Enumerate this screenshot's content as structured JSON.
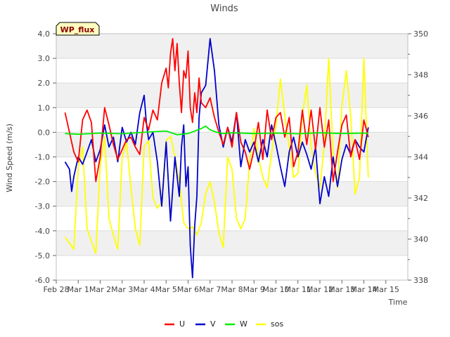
{
  "chart_data": {
    "type": "line",
    "title": "Winds",
    "xlabel": "Time",
    "ylabel": "Wind Speed (m/s)",
    "badge": "WP_flux",
    "colors": {
      "U": "#ff0000",
      "V": "#0000cc",
      "W": "#00ee00",
      "sos": "#ffff00",
      "badge_bg": "#ffffc0",
      "badge_text": "#8b0000",
      "band": "#f0f0f0"
    },
    "grid": true,
    "legend_position": "bottom-center",
    "xlim": [
      0,
      16
    ],
    "x_ticks": [
      0,
      1,
      2,
      3,
      4,
      5,
      6,
      7,
      8,
      9,
      10,
      11,
      12,
      13,
      14,
      15
    ],
    "x_tick_labels": [
      "Feb 28",
      "Mar 1",
      "Mar 2",
      "Mar 3",
      "Mar 4",
      "Mar 5",
      "Mar 6",
      "Mar 7",
      "Mar 8",
      "Mar 9",
      "Mar 10",
      "Mar 11",
      "Mar 12",
      "Mar 13",
      "Mar 14",
      "Mar 15"
    ],
    "ylim": [
      -6.0,
      4.0
    ],
    "y_ticks": [
      -6,
      -5,
      -4,
      -3,
      -2,
      -1,
      0,
      1,
      2,
      3,
      4
    ],
    "y_tick_labels": [
      "-6.0",
      "-5.0",
      "-4.0",
      "-3.0",
      "-2.0",
      "-1.0",
      "0.0",
      "1.0",
      "2.0",
      "3.0",
      "4.0"
    ],
    "y2lim": [
      338,
      350
    ],
    "y2_ticks": [
      338,
      340,
      342,
      344,
      346,
      348,
      350
    ],
    "y2_tick_labels": [
      "338",
      "340",
      "342",
      "344",
      "346",
      "348",
      "350"
    ],
    "series": [
      {
        "name": "U",
        "axis": "left",
        "x": [
          0.4,
          0.6,
          0.8,
          1.0,
          1.2,
          1.4,
          1.6,
          1.8,
          2.0,
          2.2,
          2.4,
          2.6,
          2.8,
          3.0,
          3.2,
          3.4,
          3.6,
          3.8,
          4.0,
          4.2,
          4.4,
          4.6,
          4.8,
          5.0,
          5.1,
          5.2,
          5.3,
          5.4,
          5.5,
          5.6,
          5.7,
          5.8,
          5.9,
          6.0,
          6.1,
          6.2,
          6.3,
          6.4,
          6.5,
          6.6,
          6.8,
          7.0,
          7.2,
          7.4,
          7.6,
          7.8,
          8.0,
          8.2,
          8.4,
          8.6,
          8.8,
          9.0,
          9.2,
          9.4,
          9.6,
          9.8,
          10.0,
          10.2,
          10.4,
          10.6,
          10.8,
          11.0,
          11.2,
          11.4,
          11.6,
          11.8,
          12.0,
          12.2,
          12.4,
          12.6,
          12.8,
          13.0,
          13.2,
          13.4,
          13.6,
          13.8,
          14.0,
          14.2
        ],
        "y": [
          0.8,
          0.0,
          -0.8,
          -1.2,
          0.5,
          0.9,
          0.4,
          -2.0,
          -1.0,
          1.0,
          0.3,
          -0.5,
          -1.1,
          -0.7,
          -0.3,
          -0.2,
          -0.6,
          -0.9,
          0.6,
          0.1,
          0.9,
          0.5,
          2.0,
          2.6,
          1.8,
          3.2,
          3.8,
          2.5,
          3.6,
          2.0,
          0.8,
          2.5,
          2.2,
          3.3,
          1.0,
          0.4,
          1.6,
          0.8,
          2.2,
          1.2,
          1.0,
          1.4,
          0.6,
          0.0,
          -0.5,
          0.2,
          -0.6,
          0.8,
          -0.4,
          -0.8,
          -1.5,
          -0.7,
          0.4,
          -1.1,
          0.9,
          -0.3,
          0.6,
          0.8,
          -0.2,
          0.6,
          -1.4,
          -0.8,
          0.9,
          -0.5,
          0.9,
          -0.7,
          1.0,
          -0.6,
          0.5,
          -2.0,
          -0.8,
          0.3,
          0.7,
          -1.0,
          -0.3,
          -1.1,
          0.5,
          -0.2
        ]
      },
      {
        "name": "V",
        "axis": "left",
        "x": [
          0.4,
          0.6,
          0.7,
          0.8,
          1.0,
          1.2,
          1.4,
          1.6,
          1.8,
          2.0,
          2.2,
          2.4,
          2.6,
          2.8,
          3.0,
          3.2,
          3.4,
          3.6,
          3.8,
          4.0,
          4.1,
          4.2,
          4.4,
          4.6,
          4.8,
          5.0,
          5.2,
          5.4,
          5.6,
          5.7,
          5.8,
          5.9,
          6.0,
          6.1,
          6.2,
          6.3,
          6.4,
          6.5,
          6.6,
          6.8,
          7.0,
          7.2,
          7.4,
          7.6,
          7.8,
          8.0,
          8.2,
          8.4,
          8.6,
          8.8,
          9.0,
          9.2,
          9.4,
          9.6,
          9.8,
          10.0,
          10.2,
          10.4,
          10.6,
          10.8,
          11.0,
          11.2,
          11.4,
          11.6,
          11.8,
          12.0,
          12.2,
          12.4,
          12.6,
          12.8,
          13.0,
          13.2,
          13.4,
          13.6,
          13.8,
          14.0,
          14.2
        ],
        "y": [
          -1.2,
          -1.5,
          -2.4,
          -1.8,
          -1.0,
          -1.3,
          -0.8,
          -0.3,
          -1.2,
          -0.7,
          0.3,
          -0.6,
          -0.2,
          -1.2,
          0.2,
          -0.4,
          0.0,
          -0.5,
          0.8,
          1.5,
          0.4,
          -0.3,
          0.0,
          -1.2,
          -3.0,
          -0.4,
          -3.6,
          -1.0,
          -2.6,
          -0.6,
          0.3,
          -2.2,
          -1.4,
          -4.6,
          -5.9,
          -3.8,
          -2.6,
          0.6,
          1.6,
          1.9,
          3.8,
          2.5,
          0.3,
          -0.6,
          0.2,
          -0.4,
          0.8,
          -1.4,
          -0.3,
          -0.8,
          -0.4,
          -1.2,
          -0.3,
          -1.0,
          0.3,
          -0.5,
          -1.4,
          -2.2,
          -0.8,
          -0.2,
          -1.0,
          -0.4,
          -0.9,
          -1.5,
          -0.6,
          -2.9,
          -1.8,
          -2.6,
          -1.0,
          -2.2,
          -1.1,
          -0.5,
          -0.9,
          -0.3,
          -0.6,
          -0.8,
          0.2
        ]
      },
      {
        "name": "W",
        "axis": "left",
        "x": [
          0.4,
          1.0,
          2.0,
          3.0,
          4.0,
          5.0,
          5.5,
          6.0,
          6.3,
          6.6,
          6.8,
          7.0,
          7.3,
          7.6,
          8.0,
          9.0,
          10.0,
          11.0,
          12.0,
          13.0,
          14.0,
          14.2
        ],
        "y": [
          -0.05,
          -0.08,
          -0.03,
          -0.06,
          0.0,
          0.05,
          -0.1,
          -0.05,
          0.05,
          0.15,
          0.25,
          0.1,
          0.0,
          -0.05,
          -0.02,
          -0.05,
          -0.03,
          -0.06,
          -0.02,
          -0.05,
          -0.03,
          -0.05
        ]
      },
      {
        "name": "sos",
        "axis": "right",
        "x": [
          0.4,
          0.6,
          0.8,
          1.0,
          1.2,
          1.4,
          1.6,
          1.8,
          2.0,
          2.2,
          2.4,
          2.6,
          2.8,
          3.0,
          3.2,
          3.4,
          3.6,
          3.8,
          4.0,
          4.2,
          4.4,
          4.6,
          4.8,
          5.0,
          5.2,
          5.4,
          5.6,
          5.8,
          6.0,
          6.2,
          6.4,
          6.6,
          6.8,
          7.0,
          7.2,
          7.4,
          7.6,
          7.8,
          8.0,
          8.2,
          8.4,
          8.6,
          8.8,
          9.0,
          9.2,
          9.4,
          9.6,
          9.8,
          10.0,
          10.2,
          10.4,
          10.6,
          10.8,
          11.0,
          11.2,
          11.4,
          11.6,
          11.8,
          12.0,
          12.2,
          12.4,
          12.6,
          12.8,
          13.0,
          13.2,
          13.4,
          13.6,
          13.8,
          14.0,
          14.2
        ],
        "y": [
          340.1,
          339.8,
          339.5,
          343.5,
          344.5,
          340.5,
          339.9,
          339.3,
          343.6,
          345.0,
          341.0,
          340.2,
          339.5,
          344.0,
          344.7,
          342.5,
          340.5,
          339.7,
          344.5,
          344.8,
          342.0,
          341.5,
          341.8,
          344.8,
          345.0,
          344.0,
          342.8,
          340.8,
          340.5,
          340.6,
          340.2,
          340.8,
          342.2,
          342.8,
          341.8,
          340.3,
          339.6,
          344.0,
          343.4,
          341.0,
          340.5,
          341.0,
          343.8,
          345.4,
          344.0,
          343.0,
          342.5,
          344.2,
          345.5,
          347.8,
          346.0,
          344.5,
          343.0,
          343.2,
          346.0,
          347.5,
          344.5,
          343.2,
          342.5,
          344.6,
          348.8,
          344.2,
          342.5,
          346.5,
          348.2,
          346.0,
          342.2,
          343.0,
          348.8,
          343.0
        ]
      }
    ]
  }
}
